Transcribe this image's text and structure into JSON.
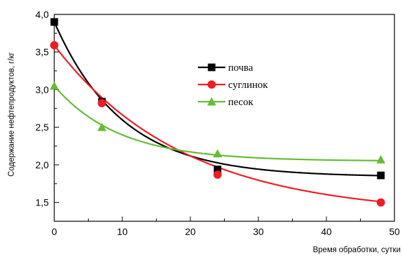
{
  "chart_data": {
    "type": "scatter",
    "xlabel": "Время обработки, сутки",
    "ylabel": "Содержание нефтепродуктов, г/кг",
    "xlim": [
      0,
      50
    ],
    "ylim": [
      1.25,
      4.0
    ],
    "x_ticks": [
      0,
      10,
      20,
      30,
      40,
      50
    ],
    "x_tick_labels": [
      "0",
      "10",
      "20",
      "30",
      "40",
      "50"
    ],
    "y_ticks": [
      1.5,
      2.0,
      2.5,
      3.0,
      3.5,
      4.0
    ],
    "y_tick_labels": [
      "1,5",
      "2,0",
      "2,5",
      "3,0",
      "3,5",
      "4,0"
    ],
    "grid": false,
    "legend_position": "upper-middle-right",
    "series": [
      {
        "name": "почва",
        "color": "#000000",
        "marker": "square",
        "x": [
          0,
          7,
          24,
          48
        ],
        "y": [
          3.9,
          2.84,
          1.94,
          1.86
        ],
        "fit": {
          "form": "exp-decay",
          "y0": 1.84,
          "A": 2.06,
          "t": 10.0
        }
      },
      {
        "name": "суглинок",
        "color": "#ee1c24",
        "marker": "circle",
        "x": [
          0,
          7,
          24,
          48
        ],
        "y": [
          3.59,
          2.82,
          1.87,
          1.5
        ],
        "fit": {
          "form": "exp-decay",
          "y0": 1.33,
          "A": 2.26,
          "t": 19.0
        }
      },
      {
        "name": "песок",
        "color": "#66bb33",
        "marker": "triangle",
        "x": [
          0,
          7,
          24,
          48
        ],
        "y": [
          3.05,
          2.5,
          2.15,
          2.07
        ],
        "fit": {
          "form": "exp-decay",
          "y0": 2.05,
          "A": 1.0,
          "t": 9.5
        }
      }
    ]
  }
}
